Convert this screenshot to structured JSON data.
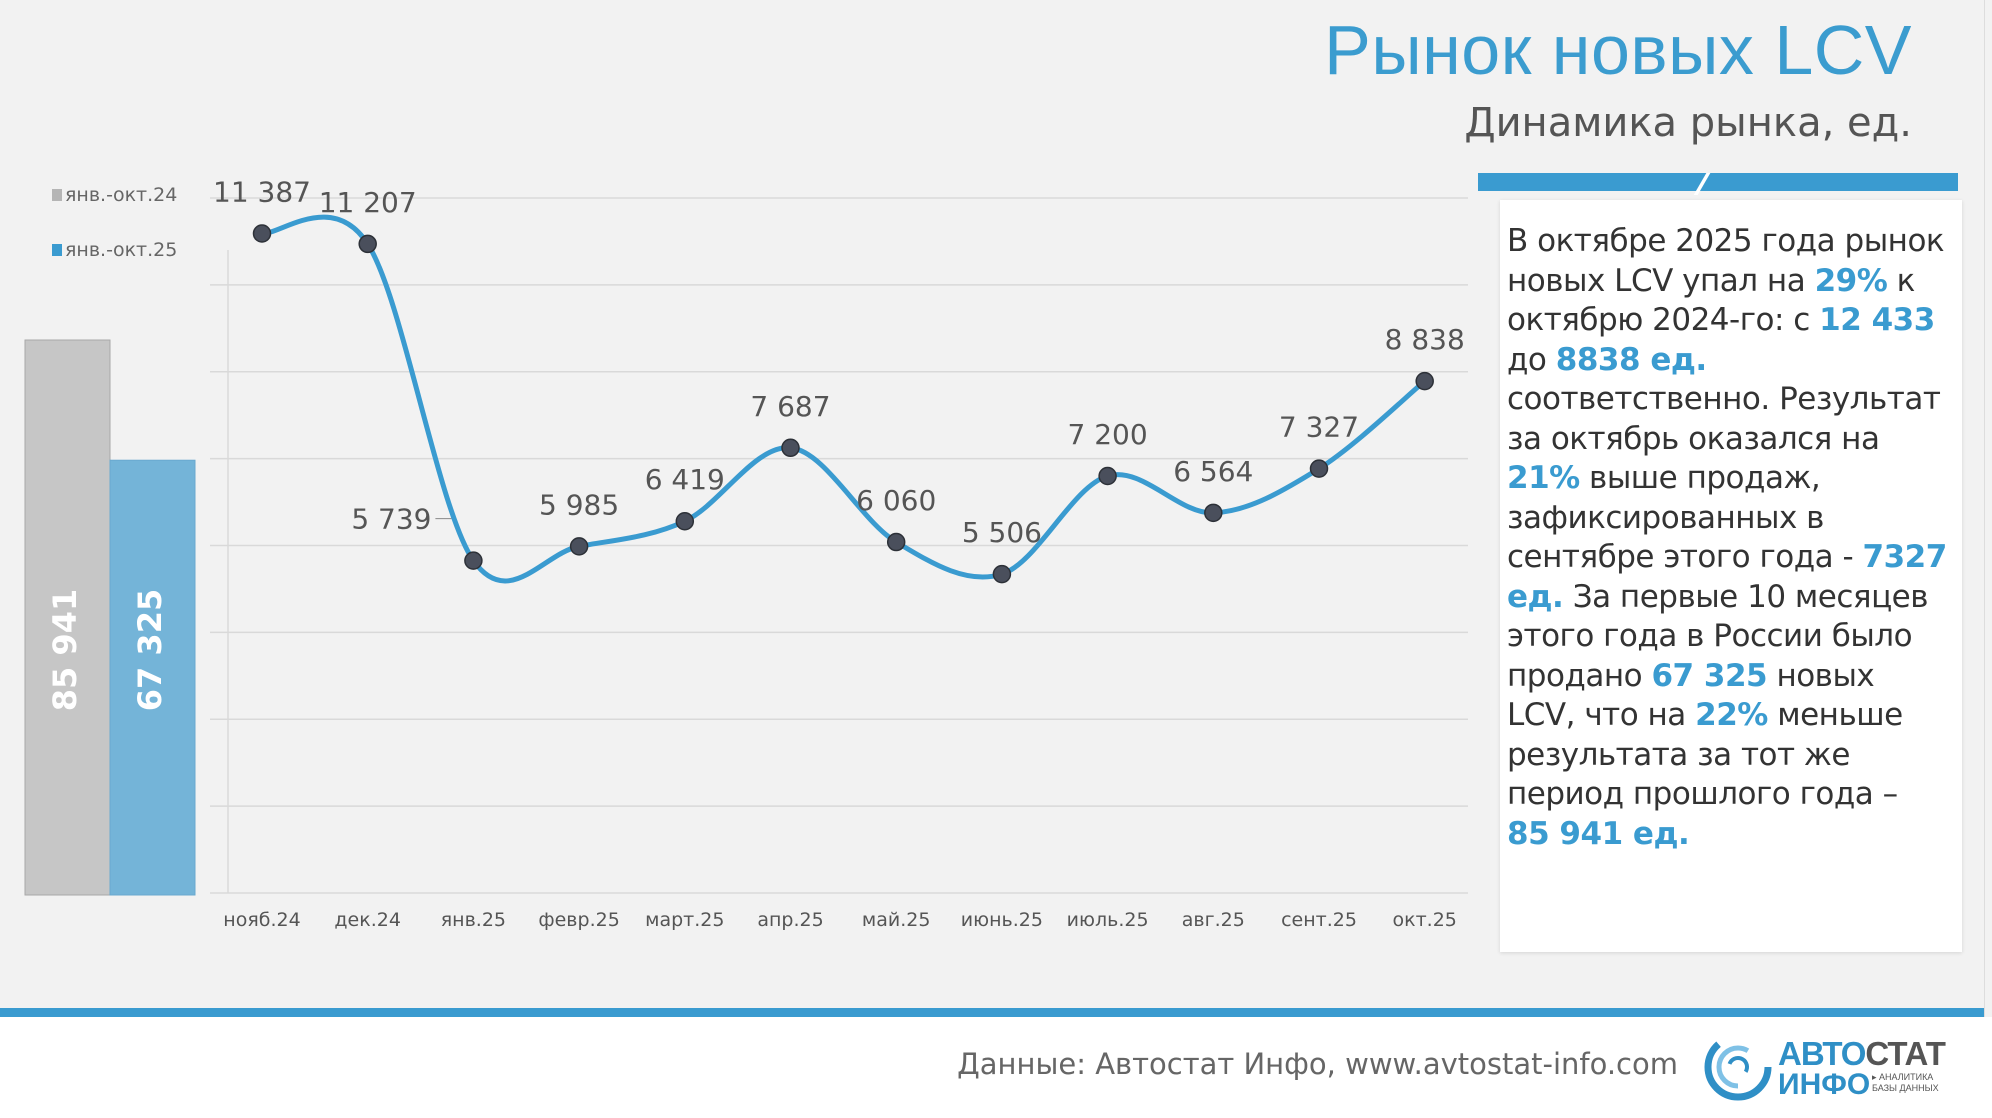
{
  "header": {
    "title": "Рынок новых LCV",
    "subtitle": "Динамика рынка, ед."
  },
  "commentary": {
    "s1": "В октябре 2025 года рынок новых LCV упал на ",
    "h1": "29%",
    "s2": " к октябрю 2024-го: с ",
    "h2": "12 433",
    "s3": " до ",
    "h3": "8838 ед.",
    "s4": " соответственно. Результат за октябрь оказался на ",
    "h4": "21%",
    "s5": " выше продаж, зафиксированных в сентябре этого года  - ",
    "h5": "7327 ед.",
    "s6": " За первые 10 месяцев этого года в России было продано ",
    "h6": "67 325",
    "s7": " новых LCV, что на ",
    "h7": "22%",
    "s8": " меньше результата за тот же период прошлого года – ",
    "h8": "85 941 ед."
  },
  "footer": {
    "source": "Данные: Автостат Инфо, www.avtostat-info.com",
    "logo_part1": "АВТО",
    "logo_part2": "СТАТ",
    "logo_line2": "ИНФО",
    "logo_tag1": "▸ АНАЛИТИКА",
    "logo_tag2": "БАЗЫ ДАННЫХ"
  },
  "colors": {
    "accent": "#3a9bd0",
    "gray_bar": "#c6c6c6",
    "blue_bar": "#74b4d8",
    "marker": "#4a4f5c"
  },
  "chart_data": [
    {
      "type": "bar",
      "series": [
        {
          "name": "янв.-окт.24",
          "value": 85941,
          "label": "85 941"
        },
        {
          "name": "янв.-окт.25",
          "value": 67325,
          "label": "67 325"
        }
      ],
      "ylim": [
        0,
        90000
      ]
    },
    {
      "type": "line",
      "categories": [
        "нояб.24",
        "дек.24",
        "янв.25",
        "февр.25",
        "март.25",
        "апр.25",
        "май.25",
        "июнь.25",
        "июль.25",
        "авг.25",
        "сент.25",
        "окт.25"
      ],
      "values": [
        11387,
        11207,
        5739,
        5985,
        6419,
        7687,
        6060,
        5506,
        7200,
        6564,
        7327,
        8838
      ],
      "labels": [
        "11 387",
        "11 207",
        "5 739",
        "5 985",
        "6 419",
        "7 687",
        "6 060",
        "5 506",
        "7 200",
        "6 564",
        "7 327",
        "8 838"
      ],
      "ylim": [
        0,
        14000
      ],
      "grid": true
    }
  ]
}
